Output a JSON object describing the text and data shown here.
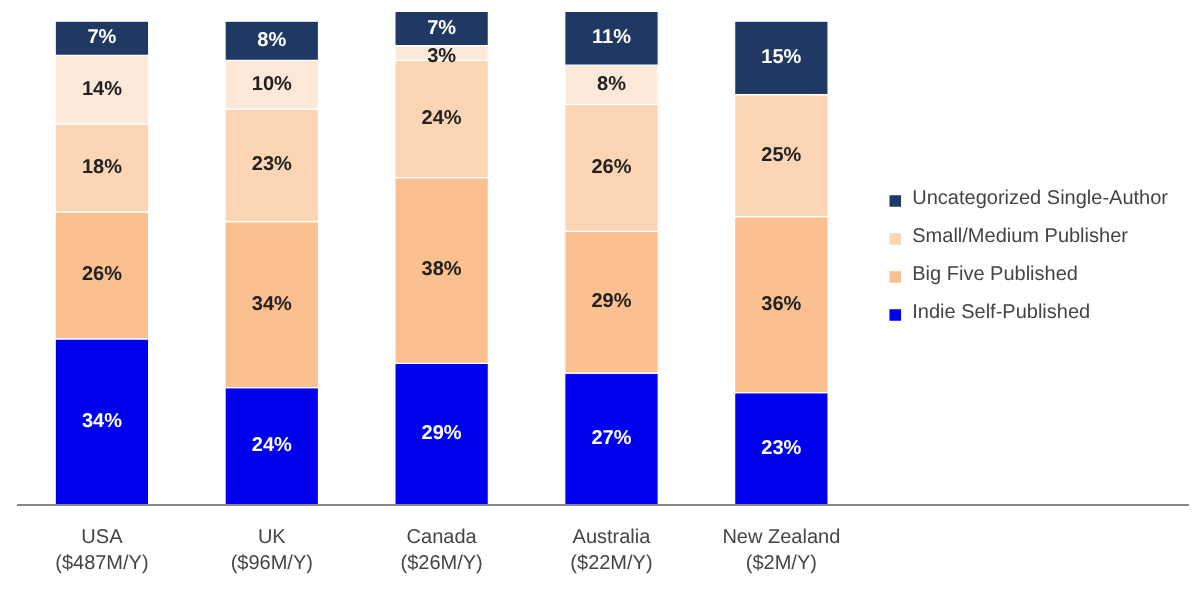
{
  "chart_data": {
    "type": "bar",
    "stacked": true,
    "categories": [
      "USA\n($487M/Y)",
      "UK\n($96M/Y)",
      "Canada\n($26M/Y)",
      "Australia\n($22M/Y)",
      "New Zealand\n($2M/Y)"
    ],
    "series": [
      {
        "name": "Indie Self-Published",
        "color": "#0000f0",
        "values": [
          34,
          24,
          29,
          27,
          23
        ],
        "value_labels": [
          "34%",
          "24%",
          "29%",
          "27%",
          "23%"
        ]
      },
      {
        "name": "Big Five Published",
        "color": "#fac090",
        "values": [
          26,
          34,
          38,
          29,
          36
        ],
        "value_labels": [
          "26%",
          "34%",
          "38%",
          "29%",
          "36%"
        ]
      },
      {
        "name": "Small/Medium Publisher",
        "color": "#fcd5b5",
        "values": [
          18,
          23,
          24,
          26,
          25
        ],
        "value_labels": [
          "18%",
          "23%",
          "24%",
          "26%",
          "25%"
        ]
      },
      {
        "color": "#fde9d9",
        "values": [
          14,
          10,
          3,
          8,
          0
        ],
        "value_labels": [
          "14%",
          "10%",
          "3%",
          "8%",
          null
        ]
      },
      {
        "name": "Uncategorized Single-Author",
        "color": "#1f3864",
        "values": [
          7,
          8,
          7,
          11,
          15
        ],
        "value_labels": [
          "7%",
          "8%",
          "7%",
          "11%",
          "15%"
        ]
      }
    ],
    "legend": "right"
  }
}
